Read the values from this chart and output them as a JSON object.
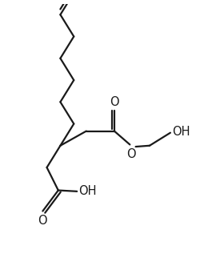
{
  "bg_color": "#ffffff",
  "line_color": "#1a1a1a",
  "line_width": 1.6,
  "font_size": 10.5,
  "label_color": "#1a1a1a",
  "xlim": [
    0,
    10
  ],
  "ylim": [
    0,
    12
  ]
}
